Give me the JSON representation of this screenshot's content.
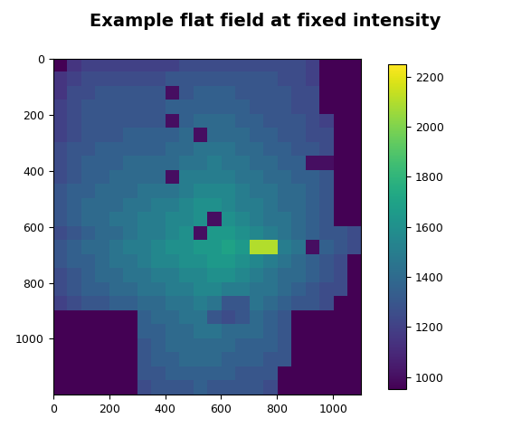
{
  "chart_data": {
    "type": "heatmap",
    "title": "Example flat field at fixed intensity",
    "color": "viridis",
    "xlim": [
      0,
      1100
    ],
    "ylim": [
      1200,
      0
    ],
    "xticks": [
      0,
      200,
      400,
      600,
      800,
      1000
    ],
    "yticks": [
      0,
      200,
      400,
      600,
      800,
      1000
    ],
    "color_range": [
      950,
      2250
    ],
    "colorbar_ticks": [
      1000,
      1200,
      1400,
      1600,
      1800,
      2000,
      2200
    ],
    "cells": [
      [
        950,
        1150,
        1200,
        1200,
        1200,
        1200,
        1200,
        1200,
        1200,
        1250,
        1250,
        1250,
        1250,
        1250,
        1250,
        1250,
        1250,
        1250,
        1200,
        950,
        950,
        950
      ],
      [
        1150,
        1200,
        1250,
        1250,
        1250,
        1250,
        1250,
        1250,
        1300,
        1300,
        1300,
        1300,
        1300,
        1300,
        1300,
        1300,
        1250,
        1250,
        1200,
        950,
        950,
        950
      ],
      [
        1150,
        1250,
        1250,
        1300,
        1300,
        1300,
        1300,
        1300,
        1000,
        1300,
        1350,
        1350,
        1350,
        1300,
        1300,
        1300,
        1300,
        1250,
        1250,
        950,
        950,
        950
      ],
      [
        1200,
        1250,
        1300,
        1300,
        1300,
        1300,
        1300,
        1300,
        1350,
        1350,
        1350,
        1350,
        1350,
        1350,
        1300,
        1300,
        1300,
        1250,
        1250,
        950,
        950,
        950
      ],
      [
        1200,
        1250,
        1300,
        1300,
        1300,
        1300,
        1300,
        1300,
        1000,
        1350,
        1400,
        1400,
        1400,
        1350,
        1350,
        1300,
        1300,
        1300,
        1250,
        1200,
        950,
        950
      ],
      [
        1200,
        1250,
        1300,
        1300,
        1300,
        1350,
        1350,
        1350,
        1350,
        1400,
        1000,
        1400,
        1400,
        1400,
        1350,
        1350,
        1300,
        1300,
        1250,
        1250,
        950,
        950
      ],
      [
        1250,
        1300,
        1300,
        1350,
        1350,
        1350,
        1350,
        1350,
        1400,
        1400,
        1450,
        1450,
        1450,
        1400,
        1400,
        1350,
        1350,
        1300,
        1300,
        1250,
        950,
        950
      ],
      [
        1250,
        1300,
        1350,
        1350,
        1350,
        1400,
        1400,
        1400,
        1400,
        1450,
        1450,
        1500,
        1450,
        1450,
        1400,
        1400,
        1350,
        1350,
        1000,
        1000,
        950,
        950
      ],
      [
        1250,
        1300,
        1350,
        1350,
        1400,
        1400,
        1400,
        1400,
        1000,
        1500,
        1500,
        1500,
        1500,
        1450,
        1450,
        1400,
        1400,
        1350,
        1350,
        1300,
        950,
        950
      ],
      [
        1300,
        1350,
        1350,
        1400,
        1400,
        1400,
        1450,
        1450,
        1450,
        1500,
        1550,
        1550,
        1550,
        1500,
        1450,
        1450,
        1400,
        1400,
        1350,
        1300,
        950,
        950
      ],
      [
        1300,
        1350,
        1400,
        1400,
        1400,
        1450,
        1450,
        1500,
        1500,
        1550,
        1600,
        1600,
        1550,
        1500,
        1500,
        1450,
        1400,
        1400,
        1350,
        1300,
        950,
        950
      ],
      [
        1300,
        1350,
        1400,
        1400,
        1450,
        1450,
        1500,
        1500,
        1550,
        1550,
        1600,
        1000,
        1600,
        1550,
        1500,
        1450,
        1450,
        1400,
        1350,
        1300,
        950,
        950
      ],
      [
        1250,
        1300,
        1350,
        1400,
        1400,
        1450,
        1500,
        1500,
        1550,
        1600,
        1000,
        1650,
        1650,
        1600,
        1550,
        1500,
        1450,
        1400,
        1350,
        1300,
        1300,
        1250
      ],
      [
        1300,
        1350,
        1400,
        1400,
        1450,
        1500,
        1500,
        1550,
        1600,
        1600,
        1650,
        1650,
        1700,
        1650,
        2100,
        2100,
        1500,
        1450,
        1000,
        1350,
        1300,
        1250
      ],
      [
        1300,
        1350,
        1350,
        1400,
        1450,
        1450,
        1500,
        1550,
        1550,
        1600,
        1600,
        1650,
        1650,
        1600,
        1550,
        1500,
        1450,
        1400,
        1350,
        1300,
        1250,
        950
      ],
      [
        1250,
        1300,
        1350,
        1400,
        1400,
        1450,
        1450,
        1500,
        1500,
        1550,
        1550,
        1600,
        1600,
        1550,
        1500,
        1450,
        1400,
        1400,
        1350,
        1300,
        1250,
        950
      ],
      [
        1250,
        1300,
        1350,
        1350,
        1400,
        1400,
        1450,
        1450,
        1500,
        1500,
        1550,
        1550,
        1500,
        1500,
        1450,
        1450,
        1400,
        1350,
        1300,
        1250,
        1250,
        950
      ],
      [
        1200,
        1250,
        1300,
        1300,
        1350,
        1350,
        1400,
        1400,
        1450,
        1450,
        1500,
        1450,
        1300,
        1300,
        1450,
        1400,
        1350,
        1300,
        1300,
        1250,
        950,
        950
      ],
      [
        950,
        950,
        950,
        950,
        950,
        950,
        1350,
        1400,
        1400,
        1450,
        1450,
        1300,
        1250,
        1300,
        1400,
        1350,
        1300,
        950,
        950,
        950,
        950,
        950
      ],
      [
        950,
        950,
        950,
        950,
        950,
        950,
        1350,
        1350,
        1400,
        1400,
        1450,
        1450,
        1400,
        1400,
        1400,
        1350,
        1300,
        950,
        950,
        950,
        950,
        950
      ],
      [
        950,
        950,
        950,
        950,
        950,
        950,
        1300,
        1350,
        1400,
        1400,
        1400,
        1400,
        1400,
        1350,
        1350,
        1350,
        1300,
        950,
        950,
        950,
        950,
        950
      ],
      [
        950,
        950,
        950,
        950,
        950,
        950,
        1300,
        1350,
        1350,
        1400,
        1400,
        1400,
        1350,
        1350,
        1350,
        1300,
        1300,
        950,
        950,
        950,
        950,
        950
      ],
      [
        950,
        950,
        950,
        950,
        950,
        950,
        1300,
        1300,
        1350,
        1350,
        1350,
        1350,
        1350,
        1300,
        1300,
        1300,
        950,
        950,
        950,
        950,
        950,
        950
      ],
      [
        950,
        950,
        950,
        950,
        950,
        950,
        1250,
        1300,
        1300,
        1300,
        1350,
        1300,
        1300,
        1300,
        1300,
        1250,
        950,
        950,
        950,
        950,
        950,
        950
      ]
    ]
  }
}
